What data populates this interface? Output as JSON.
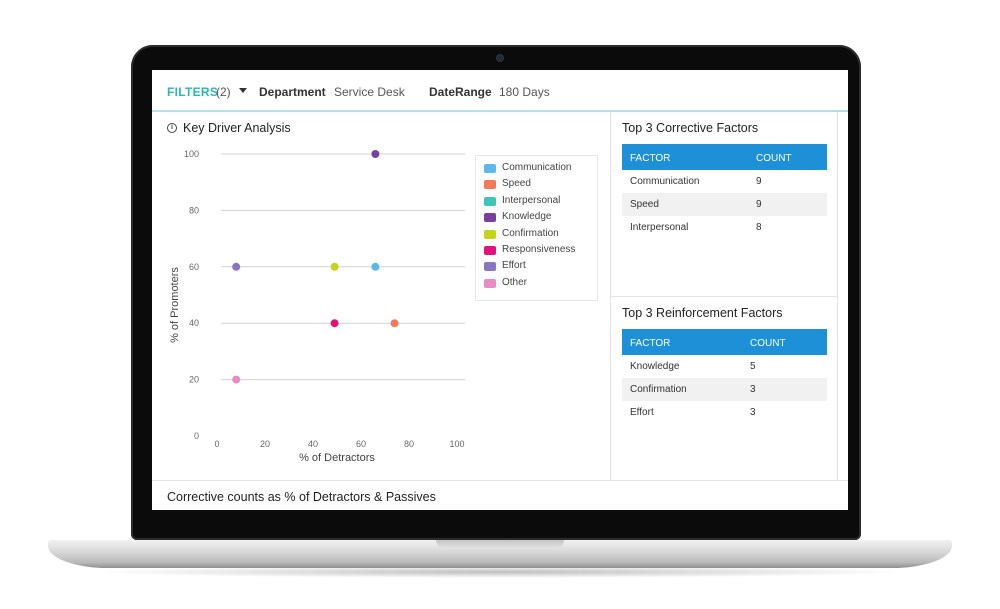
{
  "filters": {
    "label": "FILTERS",
    "count": "(2)",
    "department_label": "Department",
    "department_value": "Service Desk",
    "daterange_label": "DateRange",
    "daterange_value": "180 Days"
  },
  "key_driver": {
    "title": "Key Driver Analysis"
  },
  "chart_data": {
    "type": "scatter",
    "xlabel": "% of Detractors",
    "ylabel": "% of Promoters",
    "xlim": [
      0,
      100
    ],
    "ylim": [
      0,
      100
    ],
    "x_ticks": [
      "0",
      "20",
      "40",
      "60",
      "80",
      "100"
    ],
    "y_ticks": [
      "0",
      "20",
      "40",
      "60",
      "80",
      "100"
    ],
    "grid": "horizontal",
    "legend_position": "right",
    "series": [
      {
        "name": "Communication",
        "color": "#5bb8ea",
        "points": [
          [
            66,
            60
          ]
        ]
      },
      {
        "name": "Speed",
        "color": "#f37a57",
        "points": [
          [
            74,
            40
          ]
        ]
      },
      {
        "name": "Interpersonal",
        "color": "#3ec4b9",
        "points": []
      },
      {
        "name": "Knowledge",
        "color": "#7b3fa0",
        "points": [
          [
            66,
            100
          ]
        ]
      },
      {
        "name": "Confirmation",
        "color": "#c3d41b",
        "points": [
          [
            49,
            60
          ]
        ]
      },
      {
        "name": "Responsiveness",
        "color": "#e2117c",
        "points": [
          [
            49,
            40
          ]
        ]
      },
      {
        "name": "Effort",
        "color": "#8a76c0",
        "points": [
          [
            8,
            60
          ]
        ]
      },
      {
        "name": "Other",
        "color": "#e98bc5",
        "points": [
          [
            8,
            20
          ]
        ]
      }
    ]
  },
  "corrective": {
    "title": "Top 3 Corrective Factors",
    "header": [
      "FACTOR",
      "COUNT"
    ],
    "rows": [
      {
        "factor": "Communication",
        "count": "9"
      },
      {
        "factor": "Speed",
        "count": "9"
      },
      {
        "factor": "Interpersonal",
        "count": "8"
      }
    ]
  },
  "reinforcement": {
    "title": "Top 3 Reinforcement Factors",
    "header": [
      "FACTOR",
      "COUNT"
    ],
    "rows": [
      {
        "factor": "Knowledge",
        "count": "5"
      },
      {
        "factor": "Confirmation",
        "count": "3"
      },
      {
        "factor": "Effort",
        "count": "3"
      }
    ]
  },
  "bottom": {
    "title": "Corrective counts as % of Detractors & Passives"
  }
}
